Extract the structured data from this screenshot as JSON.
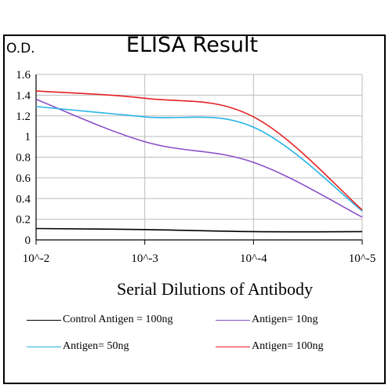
{
  "chart_data": {
    "type": "line",
    "title": "ELISA Result",
    "ylabel": "O.D.",
    "xlabel": "Serial Dilutions  of Antibody",
    "x_scale": "log",
    "x": [
      "10^-2",
      "10^-3",
      "10^-4",
      "10^-5"
    ],
    "x_ticks": [
      "10^-2",
      "10^-3",
      "10^-4",
      "10^-5"
    ],
    "y_ticks": [
      "0",
      "0.2",
      "0.4",
      "0.6",
      "0.8",
      "1",
      "1.2",
      "1.4",
      "1.6"
    ],
    "ylim": [
      0,
      1.6
    ],
    "grid": true,
    "legend_position": "bottom",
    "series": [
      {
        "name": "Control Antigen = 100ng",
        "color": "#000000",
        "values": [
          0.11,
          0.1,
          0.08,
          0.08
        ]
      },
      {
        "name": "Antigen= 10ng",
        "color": "#8a4fc8",
        "values": [
          1.36,
          0.95,
          0.75,
          0.22
        ]
      },
      {
        "name": "Antigen= 50ng",
        "color": "#28b4e6",
        "values": [
          1.29,
          1.19,
          1.09,
          0.28
        ]
      },
      {
        "name": "Antigen= 100ng",
        "color": "#e62020",
        "values": [
          1.44,
          1.37,
          1.19,
          0.29
        ]
      }
    ]
  }
}
